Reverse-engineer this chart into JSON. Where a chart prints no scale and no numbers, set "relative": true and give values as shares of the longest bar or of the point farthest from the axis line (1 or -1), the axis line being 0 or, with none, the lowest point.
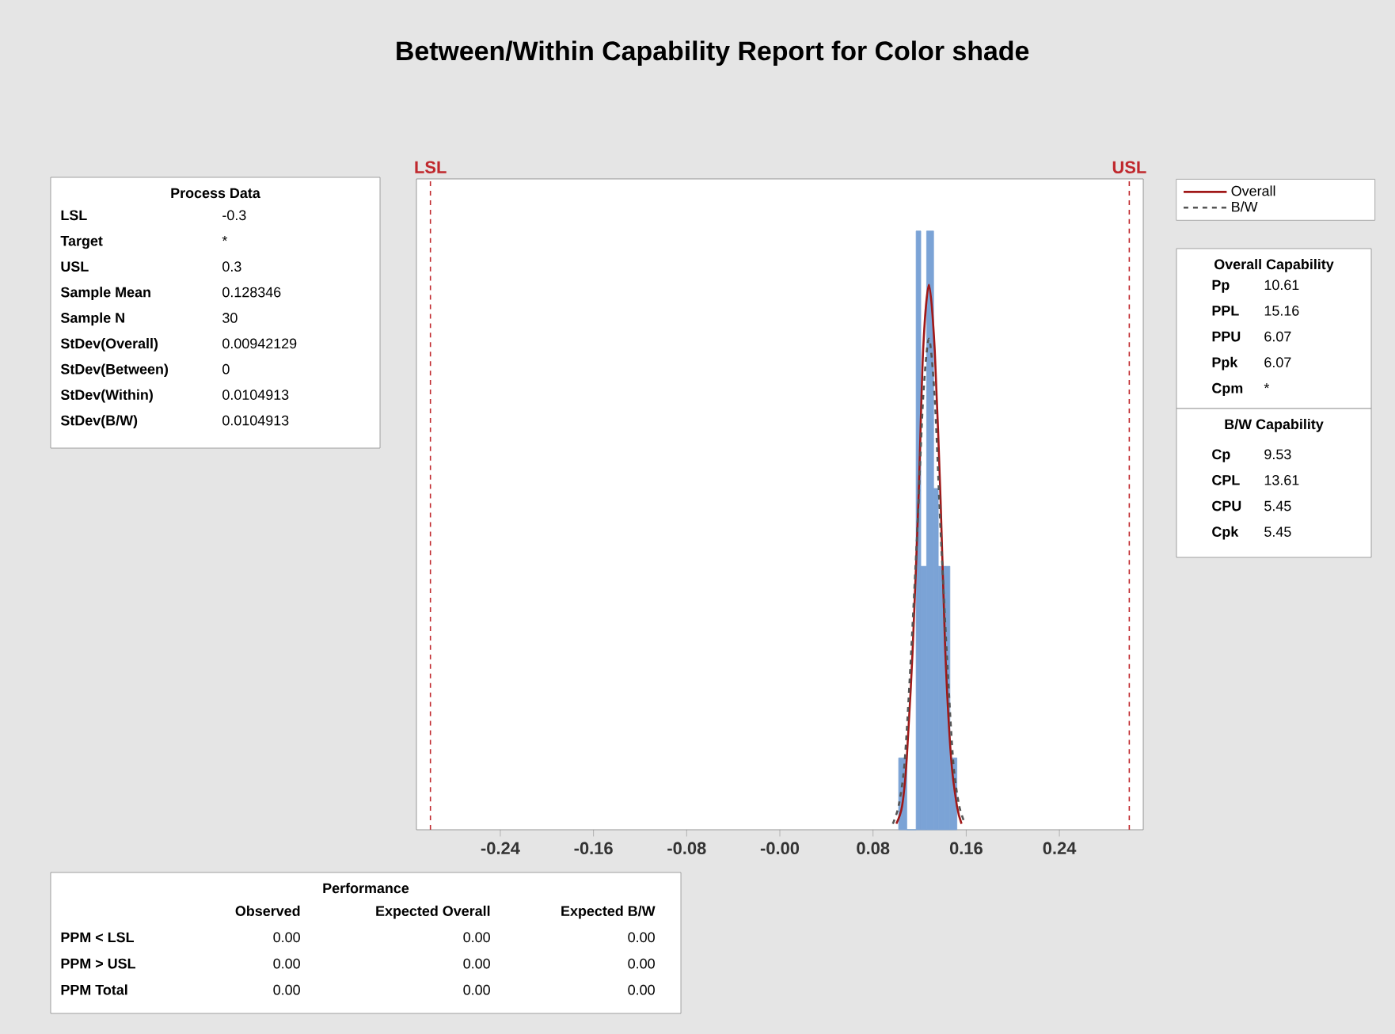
{
  "chart_data": [
    {
      "type": "histogram",
      "title": "Between/Within Capability Report for Color shade",
      "relative": true,
      "bins": [
        0.102,
        0.109,
        0.117,
        0.121,
        0.126,
        0.132,
        0.136,
        0.142,
        0.146,
        0.152
      ],
      "values": [
        0.12,
        0,
        1.0,
        0.44,
        1.0,
        0.57,
        0.44,
        0.44,
        0.12
      ],
      "color": "#7ba3d6",
      "series": [
        {
          "type": "line",
          "name": "Overall",
          "color": "#a01818",
          "line_style": "solid",
          "x": [
            0.1,
            0.105,
            0.109,
            0.114,
            0.119,
            0.123,
            0.128,
            0.133,
            0.138,
            0.142,
            0.147,
            0.152,
            0.156
          ],
          "values": [
            0.01,
            0.04,
            0.12,
            0.3,
            0.55,
            0.8,
            0.91,
            0.8,
            0.55,
            0.3,
            0.12,
            0.04,
            0.01
          ]
        },
        {
          "type": "line",
          "name": "B/W",
          "color": "#555555",
          "line_style": "dashed",
          "x": [
            0.097,
            0.102,
            0.107,
            0.112,
            0.118,
            0.123,
            0.128,
            0.133,
            0.138,
            0.144,
            0.149,
            0.154,
            0.159
          ],
          "values": [
            0.01,
            0.04,
            0.11,
            0.27,
            0.5,
            0.72,
            0.82,
            0.72,
            0.5,
            0.27,
            0.11,
            0.04,
            0.01
          ]
        }
      ],
      "xlim": [
        -0.312,
        0.312
      ],
      "xticks": [
        -0.24,
        -0.16,
        -0.08,
        {
          "value": 0,
          "label": "-0.00"
        },
        0.08,
        0.16,
        0.24
      ],
      "ref_lines": [
        {
          "axis": "x",
          "value": -0.3,
          "label": "LSL",
          "color": "#c0282d",
          "line_style": "dashed"
        },
        {
          "axis": "x",
          "value": 0.3,
          "label": "USL",
          "color": "#c0282d",
          "line_style": "dashed"
        }
      ],
      "legend": "top right",
      "tick_labels": "x",
      "marker": "none",
      "grid": false
    },
    {
      "type": "other",
      "title": "Process Data",
      "annotations": [
        "LSL",
        "-0.3",
        "Target",
        "*",
        "USL",
        "0.3",
        "Sample Mean",
        "0.128346",
        "Sample N",
        "30",
        "StDev(Overall)",
        "0.00942129",
        "StDev(Between)",
        "0",
        "StDev(Within)",
        "0.0104913",
        "StDev(B/W)",
        "0.0104913"
      ]
    },
    {
      "type": "other",
      "title": "Overall Capability",
      "annotations": [
        "Pp",
        "10.61",
        "PPL",
        "15.16",
        "PPU",
        "6.07",
        "Ppk",
        "6.07",
        "Cpm",
        "*"
      ]
    },
    {
      "type": "other",
      "title": "B/W Capability",
      "annotations": [
        "Cp",
        "9.53",
        "CPL",
        "13.61",
        "CPU",
        "5.45",
        "Cpk",
        "5.45"
      ]
    },
    {
      "type": "other",
      "title": "Performance",
      "annotations": [
        "Observed",
        "Expected Overall",
        "Expected B/W",
        "PPM < LSL",
        "0.00",
        "0.00",
        "0.00",
        "PPM > USL",
        "0.00",
        "0.00",
        "0.00",
        "PPM Total",
        "0.00",
        "0.00",
        "0.00"
      ]
    }
  ]
}
